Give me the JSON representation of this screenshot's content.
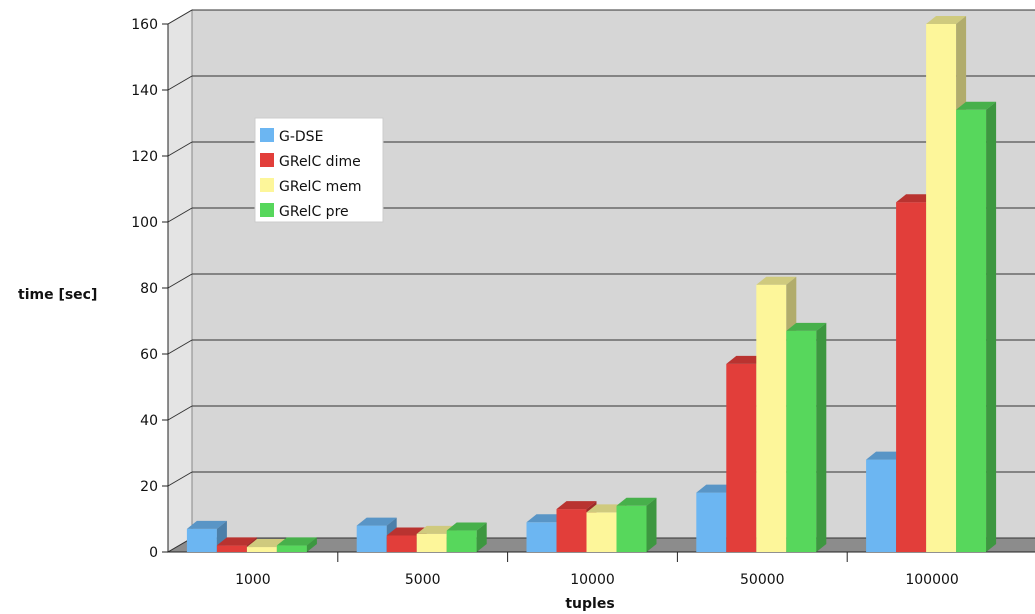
{
  "chart_data": {
    "type": "bar",
    "title": "",
    "xlabel": "tuples",
    "ylabel": "time [sec]",
    "categories": [
      "1000",
      "5000",
      "10000",
      "50000",
      "100000"
    ],
    "ylim": [
      0,
      160
    ],
    "yticks": [
      0,
      20,
      40,
      60,
      80,
      100,
      120,
      140,
      160
    ],
    "grid": true,
    "legend_position": "top-left",
    "style": "3d",
    "series": [
      {
        "name": "G-DSE",
        "color": "#6cb6f2",
        "values": [
          7,
          8,
          9,
          18,
          28
        ]
      },
      {
        "name": "GRelC dime",
        "color": "#e23e3a",
        "values": [
          2,
          5,
          13,
          57,
          106
        ]
      },
      {
        "name": "GRelC mem",
        "color": "#fdf69a",
        "values": [
          1.5,
          5.5,
          12,
          81,
          160
        ]
      },
      {
        "name": "GRelC pre",
        "color": "#57d75c",
        "values": [
          2,
          6.5,
          14,
          67,
          134
        ]
      }
    ]
  }
}
